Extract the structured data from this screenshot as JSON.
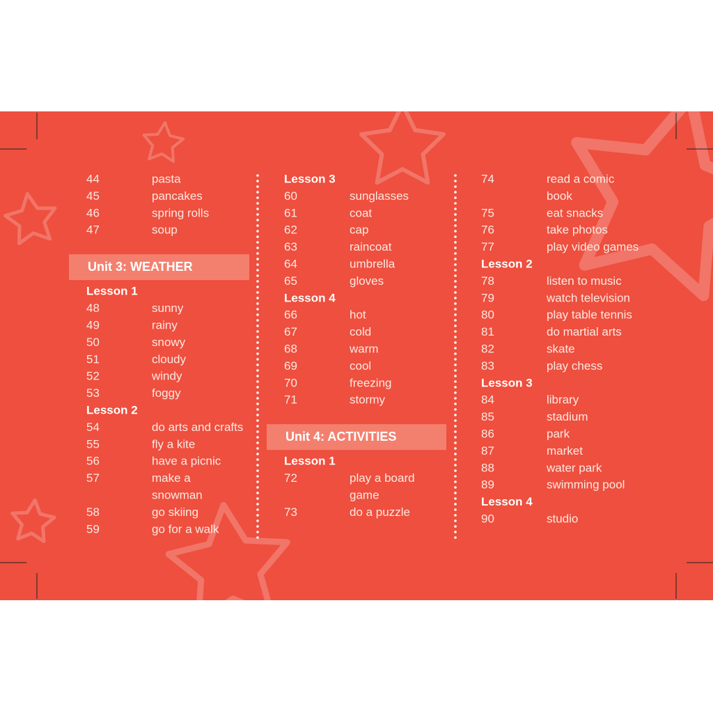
{
  "columns": [
    {
      "items": [
        {
          "number": "44",
          "word": [
            "pasta"
          ]
        },
        {
          "number": "45",
          "word": [
            "pancakes"
          ]
        },
        {
          "number": "46",
          "word": [
            "spring rolls"
          ]
        },
        {
          "number": "47",
          "word": [
            "soup"
          ]
        },
        {
          "unit": "Unit 3: WEATHER"
        },
        {
          "lesson": "Lesson 1"
        },
        {
          "number": "48",
          "word": [
            "sunny"
          ]
        },
        {
          "number": "49",
          "word": [
            "rainy"
          ]
        },
        {
          "number": "50",
          "word": [
            "snowy"
          ]
        },
        {
          "number": "51",
          "word": [
            "cloudy"
          ]
        },
        {
          "number": "52",
          "word": [
            "windy"
          ]
        },
        {
          "number": "53",
          "word": [
            "foggy"
          ]
        },
        {
          "lesson": "Lesson 2"
        },
        {
          "number": "54",
          "word": [
            "do arts and crafts"
          ]
        },
        {
          "number": "55",
          "word": [
            "fly a kite"
          ]
        },
        {
          "number": "56",
          "word": [
            "have a picnic"
          ]
        },
        {
          "number": "57",
          "word": [
            "make a",
            "snowman"
          ]
        },
        {
          "number": "58",
          "word": [
            "go skiing"
          ]
        },
        {
          "number": "59",
          "word": [
            "go for a walk"
          ]
        }
      ]
    },
    {
      "items": [
        {
          "lesson": "Lesson 3"
        },
        {
          "number": "60",
          "word": [
            "sunglasses"
          ]
        },
        {
          "number": "61",
          "word": [
            "coat"
          ]
        },
        {
          "number": "62",
          "word": [
            "cap"
          ]
        },
        {
          "number": "63",
          "word": [
            "raincoat"
          ]
        },
        {
          "number": "64",
          "word": [
            "umbrella"
          ]
        },
        {
          "number": "65",
          "word": [
            "gloves"
          ]
        },
        {
          "lesson": "Lesson 4"
        },
        {
          "number": "66",
          "word": [
            "hot"
          ]
        },
        {
          "number": "67",
          "word": [
            "cold"
          ]
        },
        {
          "number": "68",
          "word": [
            "warm"
          ]
        },
        {
          "number": "69",
          "word": [
            "cool"
          ]
        },
        {
          "number": "70",
          "word": [
            "freezing"
          ]
        },
        {
          "number": "71",
          "word": [
            "stormy"
          ]
        },
        {
          "unit": "Unit 4: ACTIVITIES"
        },
        {
          "lesson": "Lesson 1"
        },
        {
          "number": "72",
          "word": [
            "play a board",
            "game"
          ]
        },
        {
          "number": "73",
          "word": [
            "do a puzzle"
          ]
        }
      ]
    },
    {
      "items": [
        {
          "number": "74",
          "word": [
            "read a comic",
            "book"
          ]
        },
        {
          "number": "75",
          "word": [
            "eat snacks"
          ]
        },
        {
          "number": "76",
          "word": [
            "take photos"
          ]
        },
        {
          "number": "77",
          "word": [
            "play video games"
          ]
        },
        {
          "lesson": "Lesson 2"
        },
        {
          "number": "78",
          "word": [
            "listen to music"
          ]
        },
        {
          "number": "79",
          "word": [
            "watch television"
          ]
        },
        {
          "number": "80",
          "word": [
            "play table tennis"
          ]
        },
        {
          "number": "81",
          "word": [
            "do martial arts"
          ]
        },
        {
          "number": "82",
          "word": [
            "skate"
          ]
        },
        {
          "number": "83",
          "word": [
            "play chess"
          ]
        },
        {
          "lesson": "Lesson 3"
        },
        {
          "number": "84",
          "word": [
            "library"
          ]
        },
        {
          "number": "85",
          "word": [
            "stadium"
          ]
        },
        {
          "number": "86",
          "word": [
            "park"
          ]
        },
        {
          "number": "87",
          "word": [
            "market"
          ]
        },
        {
          "number": "88",
          "word": [
            "water park"
          ]
        },
        {
          "number": "89",
          "word": [
            "swimming pool"
          ]
        },
        {
          "lesson": "Lesson 4"
        },
        {
          "number": "90",
          "word": [
            "studio"
          ]
        }
      ]
    }
  ]
}
